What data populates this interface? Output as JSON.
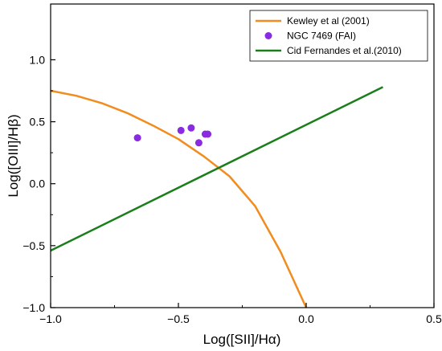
{
  "chart_data": {
    "type": "line",
    "xlabel": "Log([SII]/Hα)",
    "ylabel": "Log([OIII]/Hβ)",
    "xlim": [
      -1.0,
      0.5
    ],
    "ylim": [
      -1.0,
      1.45
    ],
    "x_ticks": [
      {
        "value": -1.0,
        "label": "−1.0"
      },
      {
        "value": -0.5,
        "label": "−0.5"
      },
      {
        "value": 0.0,
        "label": "0.0"
      },
      {
        "value": 0.5,
        "label": "0.5"
      }
    ],
    "y_ticks": [
      {
        "value": -1.0,
        "label": "−1.0"
      },
      {
        "value": -0.5,
        "label": "−0.5"
      },
      {
        "value": 0.0,
        "label": "0.0"
      },
      {
        "value": 0.5,
        "label": "0.5"
      },
      {
        "value": 1.0,
        "label": "1.0"
      }
    ],
    "grid": false,
    "legend_position": "top-right",
    "series": [
      {
        "name": "Kewley et al (2001)",
        "kind": "line",
        "color": "#f28c1e",
        "points": [
          [
            -1.0,
            0.75
          ],
          [
            -0.9,
            0.71
          ],
          [
            -0.8,
            0.65
          ],
          [
            -0.7,
            0.57
          ],
          [
            -0.6,
            0.47
          ],
          [
            -0.5,
            0.36
          ],
          [
            -0.4,
            0.22
          ],
          [
            -0.3,
            0.06
          ],
          [
            -0.2,
            -0.18
          ],
          [
            -0.1,
            -0.55
          ],
          [
            0.0,
            -1.0
          ]
        ]
      },
      {
        "name": "NGC 7469 (FAI)",
        "kind": "scatter",
        "color": "#8a2be2",
        "points": [
          [
            -0.66,
            0.37
          ],
          [
            -0.49,
            0.43
          ],
          [
            -0.45,
            0.45
          ],
          [
            -0.42,
            0.33
          ],
          [
            -0.395,
            0.4
          ],
          [
            -0.385,
            0.4
          ]
        ]
      },
      {
        "name": "Cid Fernandes et al.(2010)",
        "kind": "line",
        "color": "#1a7f1a",
        "points": [
          [
            -1.0,
            -0.54
          ],
          [
            0.3,
            0.78
          ]
        ]
      }
    ]
  }
}
